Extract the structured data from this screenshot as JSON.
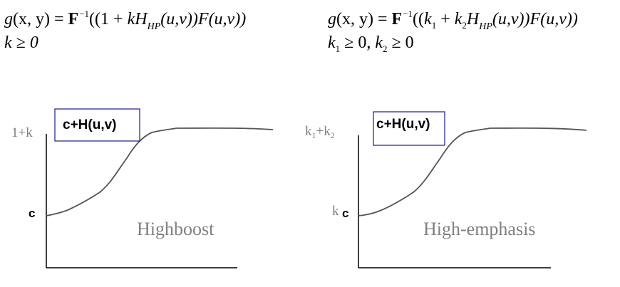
{
  "equations": {
    "left": {
      "g": "g",
      "args": "(x, y) = ",
      "F": "F",
      "inv": "−1",
      "body_open": "((1 + ",
      "k": "k",
      "H": "H",
      "hp": "HP",
      "uv1": "(u,v))",
      "Fuv": "F",
      "uv2": "(u,v))",
      "cond": "k ≥ 0"
    },
    "right": {
      "g": "g",
      "args": "(x, y) = ",
      "F": "F",
      "inv": "−1",
      "open": "((",
      "k1": "k",
      "sub1": "1",
      "plus": " + ",
      "k2": "k",
      "sub2": "2",
      "H": "H",
      "hp": "HP",
      "uv1": "(u,v))",
      "Fuv": "F",
      "uv2": "(u,v))",
      "cond_k1": "k",
      "cond_sub1": "1",
      "cond_mid": " ≥ 0, ",
      "cond_k2": "k",
      "cond_sub2": "2",
      "cond_end": " ≥ 0"
    }
  },
  "plots": {
    "left": {
      "box_label": "c+H(u,v)",
      "y_top_label": "1+k",
      "y_bottom_label": "c",
      "caption": "Highboost"
    },
    "right": {
      "box_label": "c+H(u,v)",
      "y_top_k": "k",
      "y_top_sub1": "1",
      "y_top_plus": "+k",
      "y_top_sub2": "2",
      "y_bottom_k": "k",
      "y_bottom_c": "c",
      "caption": "High-emphasis"
    }
  },
  "colors": {
    "curve": "#555555",
    "box": "#1a1a8c",
    "label_gray": "#808080"
  }
}
